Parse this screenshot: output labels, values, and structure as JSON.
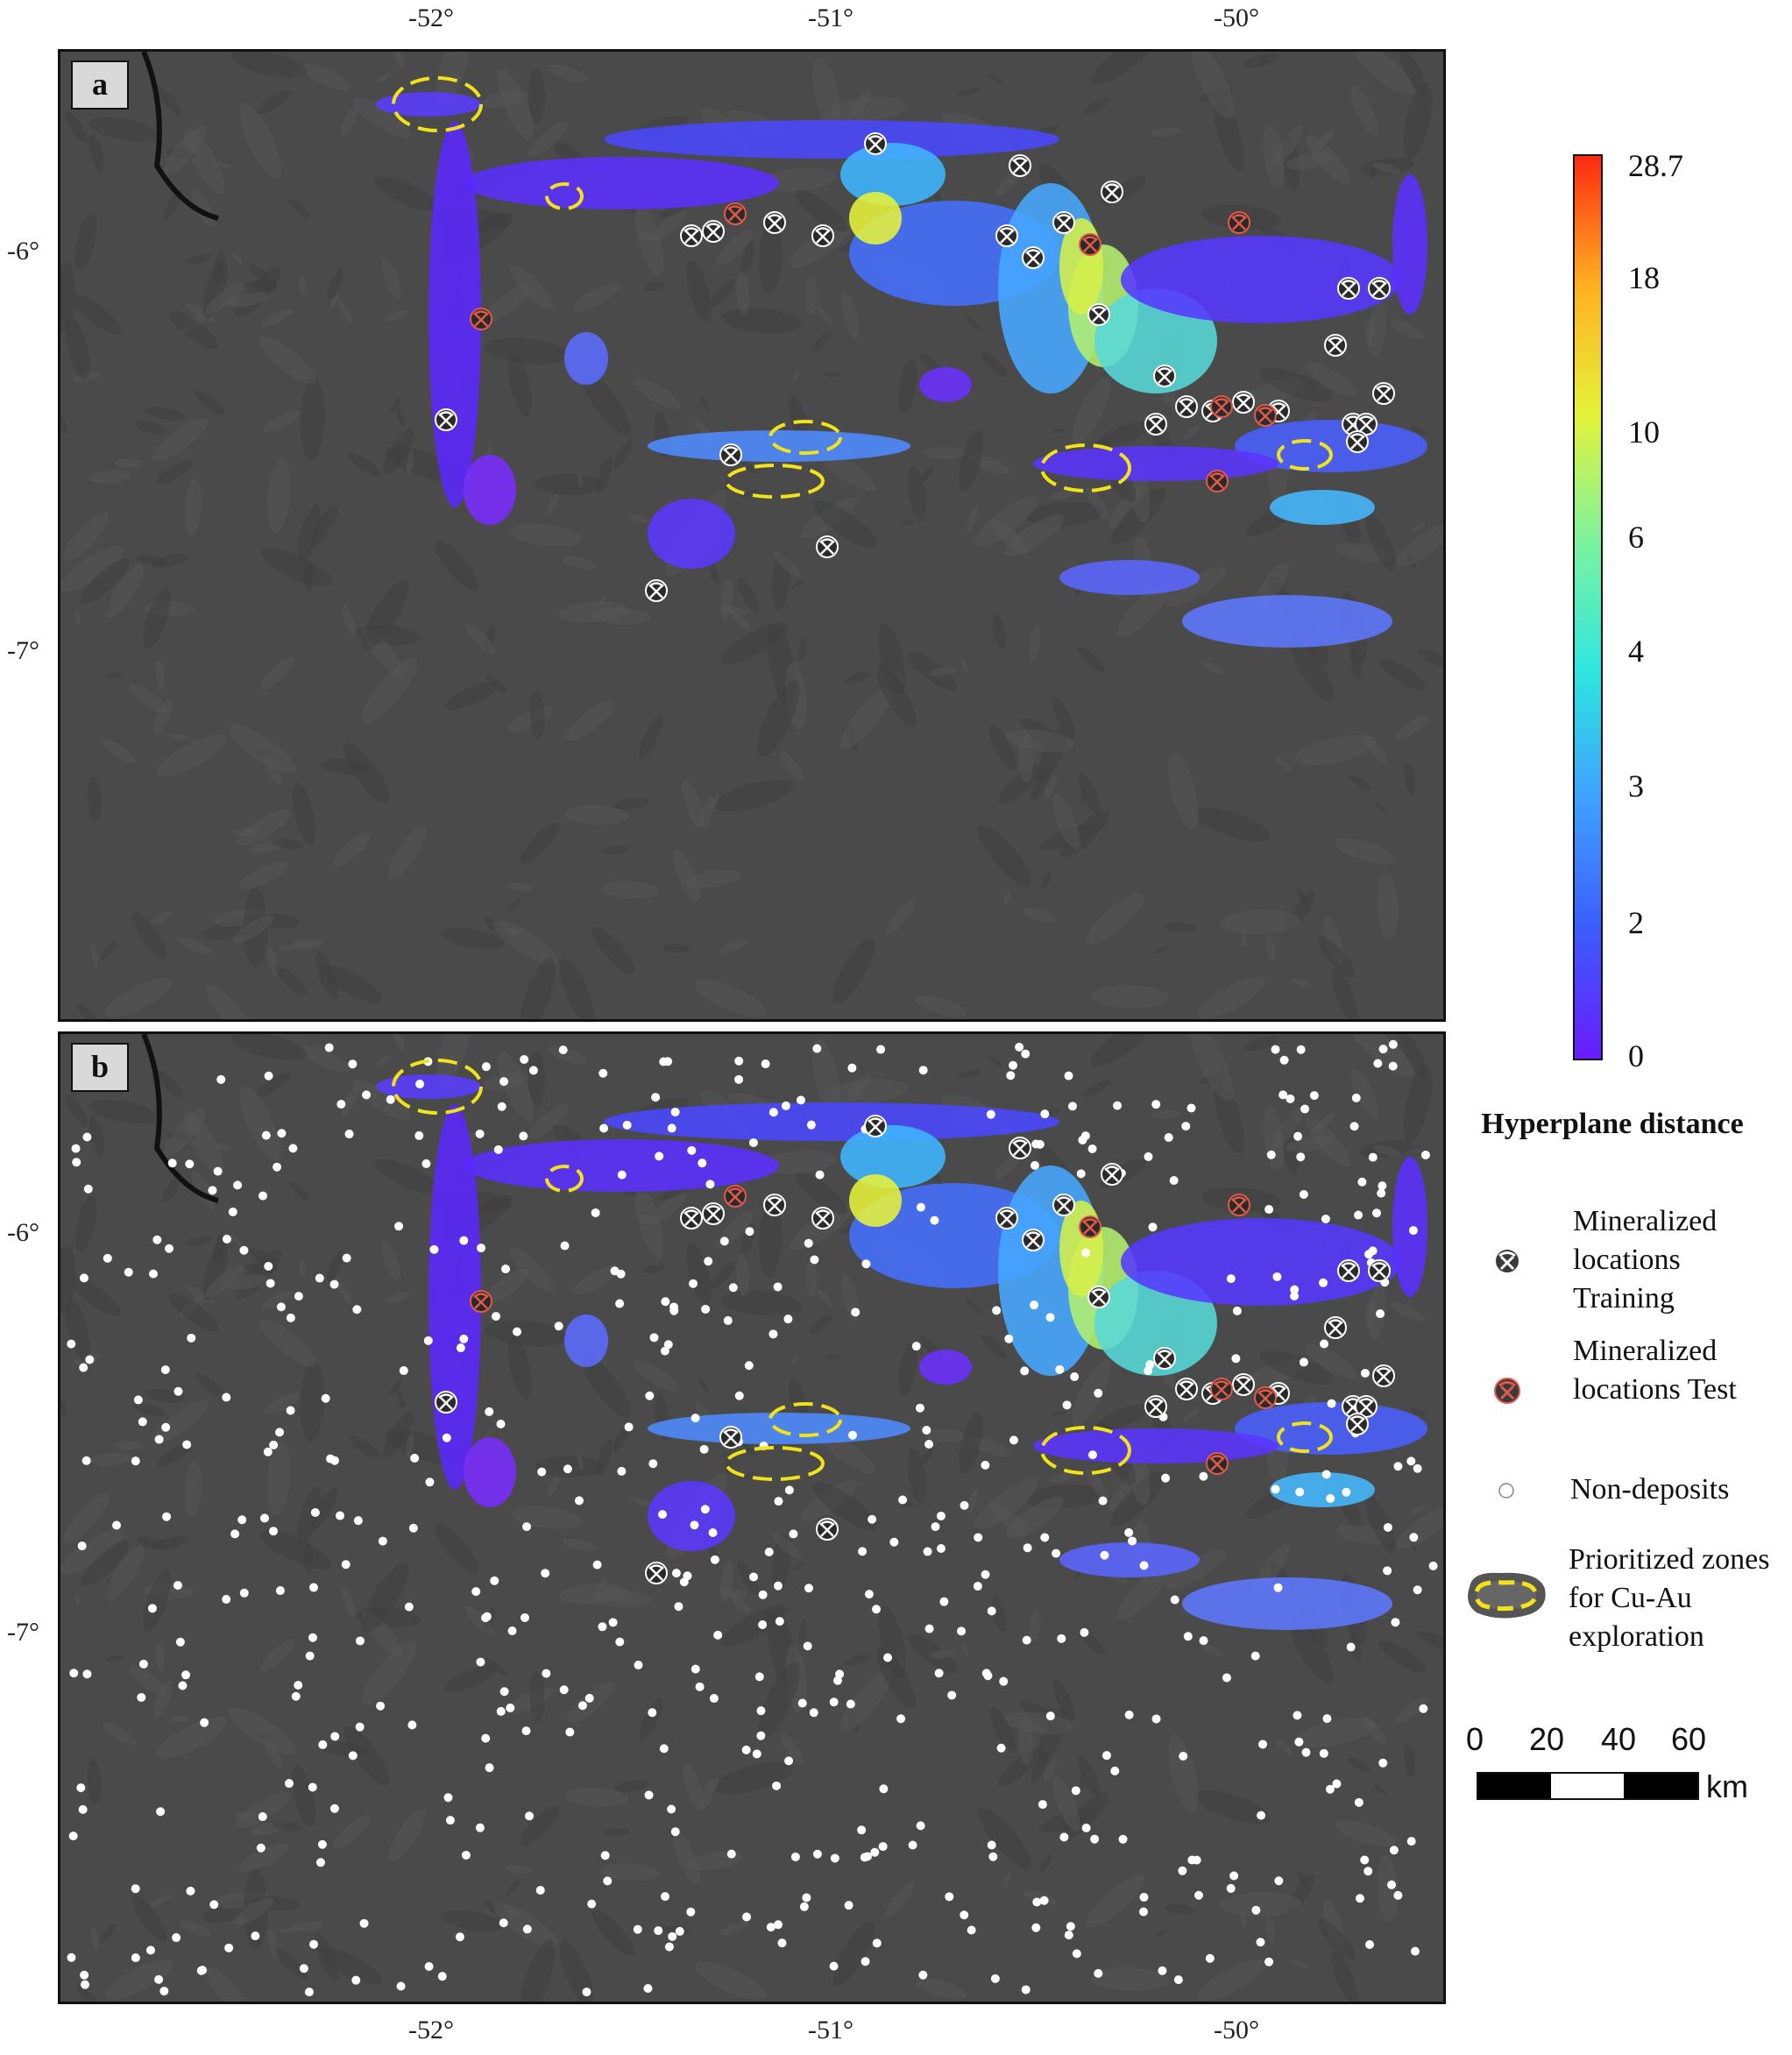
{
  "axes": {
    "x_ticks": [
      "-52°",
      "-51°",
      "-50°"
    ],
    "y_ticks": [
      "-6°",
      "-7°"
    ]
  },
  "panels": [
    {
      "letter": "a",
      "show_non_deposits": false
    },
    {
      "letter": "b",
      "show_non_deposits": true
    }
  ],
  "colorbar": {
    "ticks": [
      "28.7",
      "18",
      "10",
      "6",
      "4",
      "3",
      "2",
      "0"
    ],
    "colors": [
      "#6a1cff",
      "#3c5cff",
      "#3fa0ff",
      "#2ee6e0",
      "#7cf2a0",
      "#e6f23a",
      "#ffb020",
      "#ff2a10"
    ]
  },
  "legend": {
    "title": "Hyperplane distance",
    "items": [
      {
        "icon": "pickaxe-training-icon",
        "label": "Mineralized locations Training",
        "color": "#ffffff"
      },
      {
        "icon": "pickaxe-test-icon",
        "label": "Mineralized locations Test",
        "color": "#e05a4a"
      },
      {
        "icon": "non-deposit-dot-icon",
        "label": "Non-deposits",
        "color": "#ffffff"
      },
      {
        "icon": "prioritized-zone-icon",
        "label": "Prioritized zones for Cu-Au exploration",
        "color": "#f2e21a"
      }
    ]
  },
  "scalebar": {
    "ticks": [
      "0",
      "20",
      "40",
      "60"
    ],
    "unit": "km"
  }
}
